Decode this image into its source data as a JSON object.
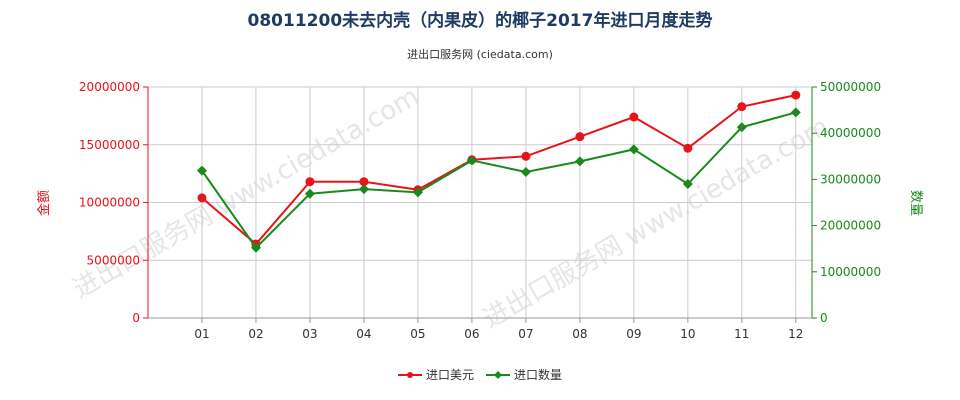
{
  "title": "08011200未去内壳（内果皮）的椰子2017年进口月度走势",
  "subtitle": "进出口服务网 (ciedata.com)",
  "watermark": "进出口服务网 www.ciedata.com",
  "colors": {
    "usd": "#e8141b",
    "qty": "#1a8a1a",
    "grid": "#cccccc",
    "title": "#1f3b63"
  },
  "chart_data": {
    "type": "line",
    "x": [
      "01",
      "02",
      "03",
      "04",
      "05",
      "06",
      "07",
      "08",
      "09",
      "10",
      "11",
      "12"
    ],
    "y_left": {
      "label": "金额",
      "ylim": [
        0,
        20000000
      ],
      "ticks": [
        "0",
        "5000000",
        "10000000",
        "15000000",
        "20000000"
      ]
    },
    "y_right": {
      "label": "数量",
      "ylim": [
        0,
        50000000
      ],
      "ticks": [
        "0",
        "10000000",
        "20000000",
        "30000000",
        "40000000",
        "50000000"
      ]
    },
    "series": [
      {
        "name": "进口美元",
        "axis": "left",
        "color": "#e8141b",
        "values": [
          10400000,
          6400000,
          11800000,
          11800000,
          11100000,
          13700000,
          14000000,
          15700000,
          17400000,
          14700000,
          18300000,
          19300000
        ]
      },
      {
        "name": "进口数量",
        "axis": "right",
        "color": "#1a8a1a",
        "values": [
          31900000,
          15200000,
          26900000,
          27900000,
          27200000,
          34100000,
          31600000,
          33900000,
          36500000,
          29000000,
          41300000,
          44500000
        ]
      }
    ],
    "grid": true,
    "legend": "bottom-center"
  }
}
